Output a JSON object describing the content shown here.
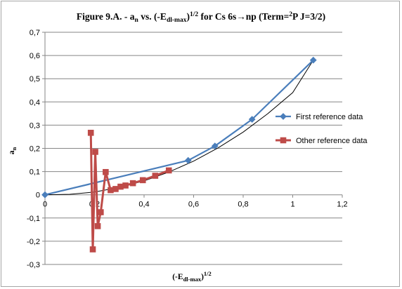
{
  "chart_data": {
    "type": "line",
    "title": {
      "prefix": "Figure 9.A. - a",
      "sub_n": "n",
      "mid1": " vs. (-E",
      "sub_dl": "dl-max",
      "mid2": ")",
      "sup_half": "1/2",
      "mid3": " for Cs 6s→np (Term=",
      "sup_2": "2",
      "tail": "P J=3/2)"
    },
    "xlabel": {
      "main": "(-E",
      "sub": "dl-max",
      "close": ")",
      "sup": "1/2"
    },
    "ylabel": {
      "main": "a",
      "sub": "n"
    },
    "xlim": [
      0,
      1.2
    ],
    "ylim": [
      -0.3,
      0.7
    ],
    "x_ticks": [
      "0",
      "0,2",
      "0,4",
      "0,6",
      "0,8",
      "1",
      "1,2"
    ],
    "y_ticks": [
      "0,7",
      "0,6",
      "0,5",
      "0,4",
      "0,3",
      "0,2",
      "0,1",
      "0",
      "-0,1",
      "-0,2",
      "-0,3"
    ],
    "grid": "horizontal major",
    "legend_position": "right",
    "series": [
      {
        "name": "First reference data",
        "color": "#4a7ebb",
        "marker": "diamond",
        "x": [
          0.0,
          0.578,
          0.686,
          0.836,
          1.083
        ],
        "y": [
          0.0,
          0.148,
          0.21,
          0.325,
          0.58
        ]
      },
      {
        "name": "Other reference data",
        "color": "#be4b48",
        "marker": "square",
        "x": [
          0.185,
          0.193,
          0.203,
          0.213,
          0.225,
          0.245,
          0.265,
          0.285,
          0.305,
          0.325,
          0.355,
          0.395,
          0.445,
          0.5
        ],
        "y": [
          0.267,
          -0.235,
          0.185,
          -0.135,
          -0.075,
          0.098,
          0.02,
          0.025,
          0.035,
          0.04,
          0.05,
          0.063,
          0.082,
          0.105
        ]
      }
    ],
    "trendline": {
      "color": "#000000",
      "x": [
        0,
        0.1,
        0.2,
        0.3,
        0.4,
        0.5,
        0.6,
        0.7,
        0.8,
        0.9,
        1.0,
        1.083
      ],
      "y": [
        0,
        0.002,
        0.012,
        0.032,
        0.06,
        0.098,
        0.145,
        0.203,
        0.27,
        0.35,
        0.44,
        0.58
      ]
    }
  }
}
